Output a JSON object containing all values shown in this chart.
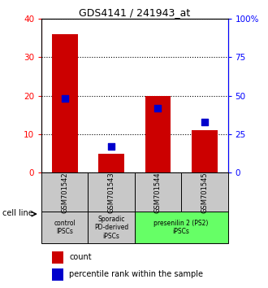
{
  "title": "GDS4141 / 241943_at",
  "samples": [
    "GSM701542",
    "GSM701543",
    "GSM701544",
    "GSM701545"
  ],
  "counts": [
    36,
    5,
    20,
    11
  ],
  "percentiles": [
    48,
    17,
    42,
    33
  ],
  "ylim_left": [
    0,
    40
  ],
  "ylim_right": [
    0,
    100
  ],
  "yticks_left": [
    0,
    10,
    20,
    30,
    40
  ],
  "yticks_right": [
    0,
    25,
    50,
    75,
    100
  ],
  "ytick_right_labels": [
    "0",
    "25",
    "50",
    "75",
    "100%"
  ],
  "bar_color": "#cc0000",
  "percentile_color": "#0000cc",
  "category_groups": [
    {
      "label": "control\nIPSCs",
      "indices": [
        0
      ],
      "bg": "#c8c8c8"
    },
    {
      "label": "Sporadic\nPD-derived\niPSCs",
      "indices": [
        1
      ],
      "bg": "#c8c8c8"
    },
    {
      "label": "presenilin 2 (PS2)\niPSCs",
      "indices": [
        2,
        3
      ],
      "bg": "#66ff66"
    }
  ],
  "sample_box_bg": "#c8c8c8",
  "legend_count_label": "count",
  "legend_percentile_label": "percentile rank within the sample",
  "cell_line_label": "cell line",
  "bar_width": 0.55,
  "percentile_marker_size": 30
}
